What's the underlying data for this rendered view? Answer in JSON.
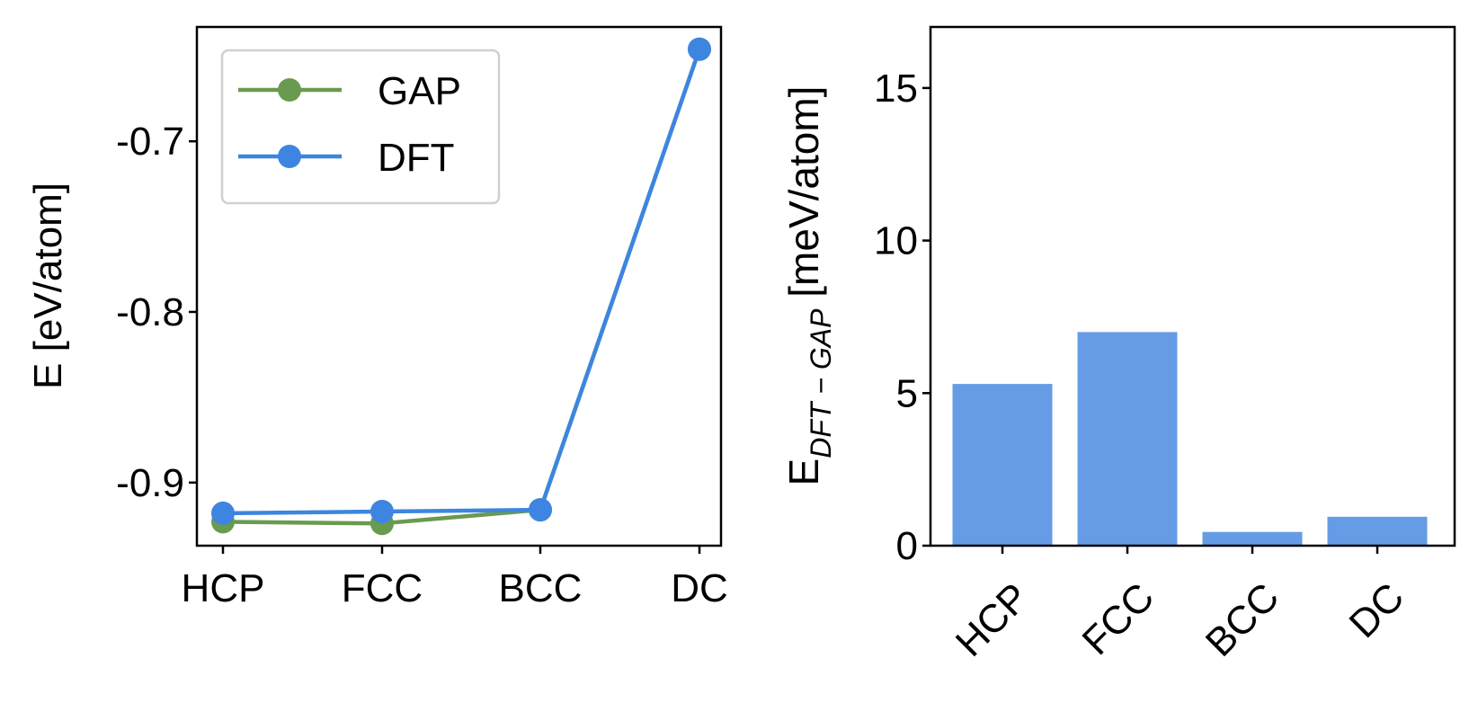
{
  "colors": {
    "gap": "#6a9a4f",
    "dft": "#3d85e0",
    "bar": "#659ce5",
    "legend_border": "#d0d0d0"
  },
  "chart_data": [
    {
      "type": "line",
      "title": "",
      "xlabel": "",
      "ylabel": "E [eV/atom]",
      "categories": [
        "HCP",
        "FCC",
        "BCC",
        "DC"
      ],
      "ylim": [
        -0.937,
        -0.633
      ],
      "yticks": [
        -0.9,
        -0.8,
        -0.7
      ],
      "ytick_labels": [
        "-0.9",
        "-0.8",
        "-0.7"
      ],
      "legend": "top-left",
      "grid": false,
      "series": [
        {
          "name": "GAP",
          "values": [
            -0.923,
            -0.924,
            -0.916,
            -0.646
          ]
        },
        {
          "name": "DFT",
          "values": [
            -0.918,
            -0.917,
            -0.916,
            -0.646
          ]
        }
      ]
    },
    {
      "type": "bar",
      "title": "",
      "xlabel": "",
      "ylabel_main": "E",
      "ylabel_sub": "DFT − GAP",
      "ylabel_rest": " [meV/atom]",
      "categories": [
        "HCP",
        "FCC",
        "BCC",
        "DC"
      ],
      "values": [
        5.3,
        7.0,
        0.45,
        0.95
      ],
      "ylim": [
        0,
        17
      ],
      "yticks": [
        0,
        5,
        10,
        15
      ],
      "ytick_labels": [
        "0",
        "5",
        "10",
        "15"
      ],
      "grid": false
    }
  ]
}
